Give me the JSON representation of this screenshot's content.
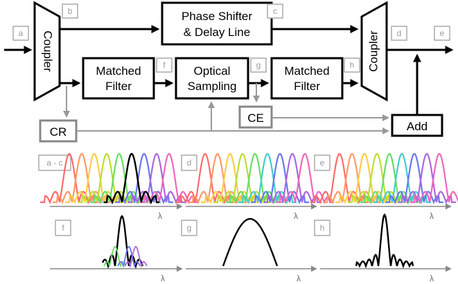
{
  "blocks": {
    "coupler_in": "Coupler",
    "coupler_out": "Coupler",
    "phase_shifter_line1": "Phase Shifter",
    "phase_shifter_line2": "& Delay Line",
    "matched_filter_1_line1": "Matched",
    "matched_filter_1_line2": "Filter",
    "optical_sampling_line1": "Optical",
    "optical_sampling_line2": "Sampling",
    "matched_filter_2_line1": "Matched",
    "matched_filter_2_line2": "Filter",
    "cr": "CR",
    "ce": "CE",
    "add": "Add"
  },
  "tags": {
    "a": "a",
    "b": "b",
    "c": "c",
    "d": "d",
    "e": "e",
    "f": "f",
    "g": "g",
    "h": "h",
    "panel_ac": "a - c",
    "panel_d": "d",
    "panel_e": "e",
    "panel_f": "f",
    "panel_g": "g",
    "panel_h": "h"
  },
  "axis_label": "λ",
  "colors": {
    "spectra": [
      "#ff6a6a",
      "#ff9966",
      "#ffcc44",
      "#bbdd33",
      "#66dd66",
      "#44cccc",
      "#6677ee",
      "#aa66dd",
      "#ee66bb"
    ],
    "black": "#000000",
    "grey": "#999999"
  }
}
